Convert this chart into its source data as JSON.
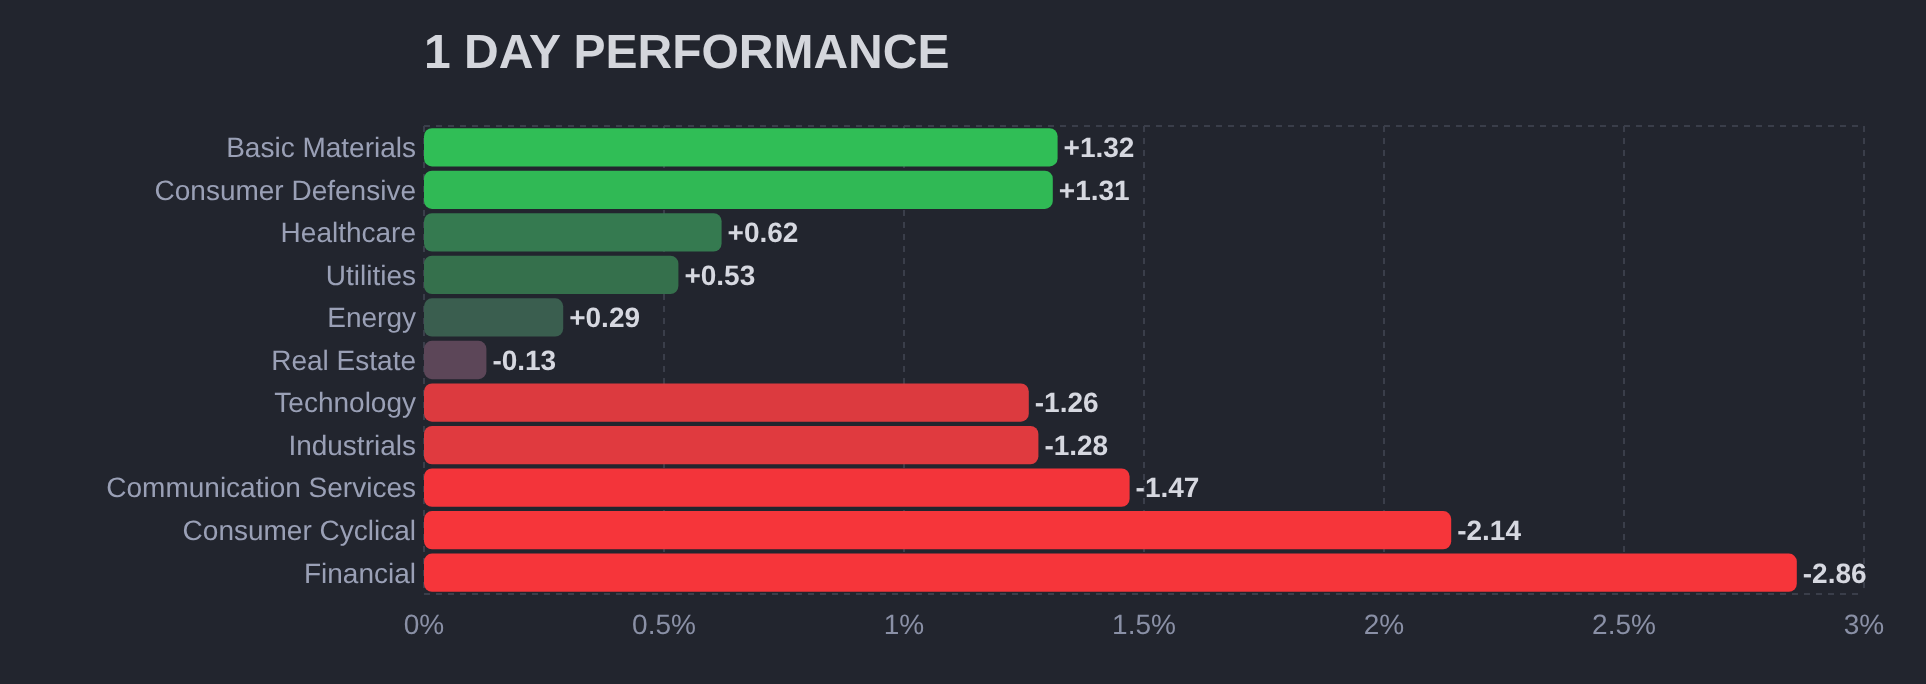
{
  "chart_data": {
    "type": "bar",
    "orientation": "horizontal",
    "title": "1 DAY PERFORMANCE",
    "categories": [
      "Basic Materials",
      "Consumer Defensive",
      "Healthcare",
      "Utilities",
      "Energy",
      "Real Estate",
      "Technology",
      "Industrials",
      "Communication Services",
      "Consumer Cyclical",
      "Financial"
    ],
    "values": [
      1.32,
      1.31,
      0.62,
      0.53,
      0.29,
      0.13,
      1.26,
      1.28,
      1.47,
      2.14,
      2.86
    ],
    "colors": [
      "#30be56",
      "#30b955",
      "#357a50",
      "#35704c",
      "#3a5e4f",
      "#5c4658",
      "#dc3a3f",
      "#e03a3f",
      "#f3343a",
      "#f6353a",
      "#f6353a"
    ],
    "annotations": [
      {
        "text": "+1.32",
        "x": 1.32,
        "y": "Basic Materials"
      },
      {
        "text": "+1.31",
        "x": 1.31,
        "y": "Consumer Defensive"
      },
      {
        "text": "+0.62",
        "x": 0.62,
        "y": "Healthcare"
      },
      {
        "text": "+0.53",
        "x": 0.53,
        "y": "Utilities"
      },
      {
        "text": "+0.29",
        "x": 0.29,
        "y": "Energy"
      },
      {
        "text": "-0.13",
        "x": 0.13,
        "y": "Real Estate"
      },
      {
        "text": "-1.26",
        "x": 1.26,
        "y": "Technology"
      },
      {
        "text": "-1.28",
        "x": 1.28,
        "y": "Industrials"
      },
      {
        "text": "-1.47",
        "x": 1.47,
        "y": "Communication Services"
      },
      {
        "text": "-2.14",
        "x": 2.14,
        "y": "Consumer Cyclical"
      },
      {
        "text": "-2.86",
        "x": 2.86,
        "y": "Financial"
      }
    ],
    "xlim": [
      0,
      3
    ],
    "xticks": [
      {
        "value": 0,
        "label": "0%"
      },
      {
        "value": 0.5,
        "label": "0.5%"
      },
      {
        "value": 1,
        "label": "1%"
      },
      {
        "value": 1.5,
        "label": "1.5%"
      },
      {
        "value": 2,
        "label": "2%"
      },
      {
        "value": 2.5,
        "label": "2.5%"
      },
      {
        "value": 3,
        "label": "3%"
      }
    ],
    "grid": "x"
  }
}
